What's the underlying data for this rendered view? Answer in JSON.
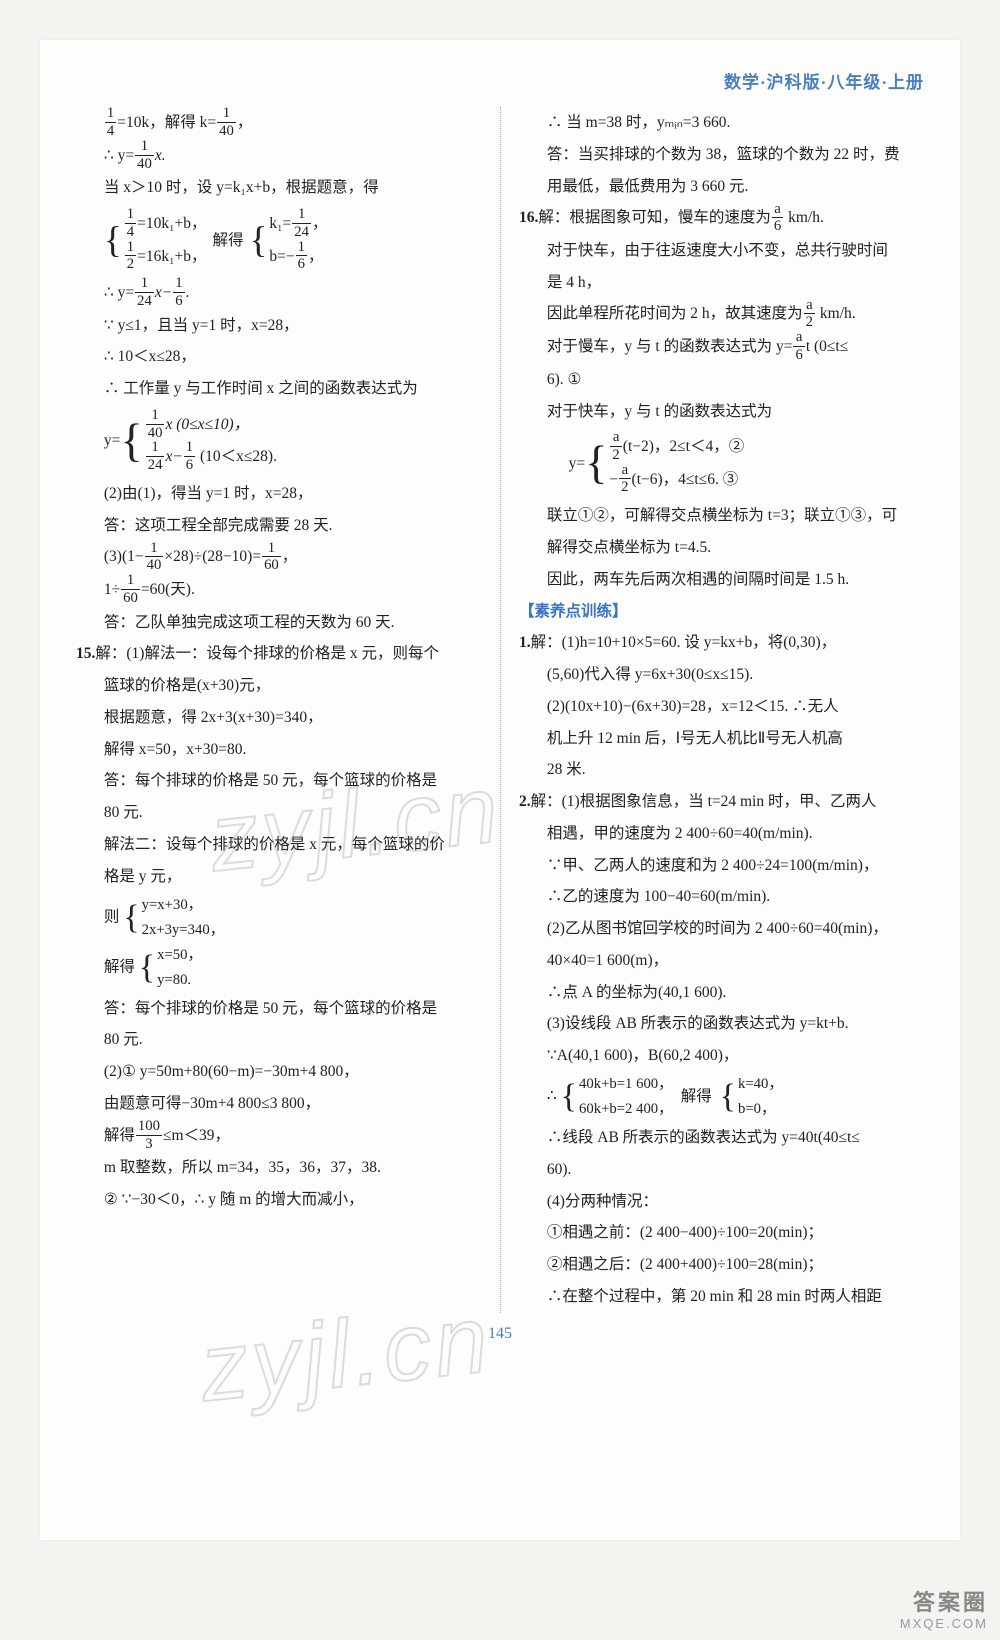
{
  "header": "数学·沪科版·八年级·上册",
  "page_number": "145",
  "watermark_text": "zyjl.cn",
  "corner": {
    "line1": "答案圈",
    "line2": "MXQE.COM"
  },
  "left": {
    "l1a": "1",
    "l1b": "4",
    "l1c": "=10k，解得 k=",
    "l1d": "1",
    "l1e": "40",
    "l1f": "，",
    "l2a": "∴ y=",
    "l2b": "1",
    "l2c": "40",
    "l2d": "x.",
    "l3": "当 x＞10 时，设 y=k₁x+b，根据题意，得",
    "sys1a_n": "1",
    "sys1a_d": "4",
    "sys1a_t": "=10k₁+b，",
    "sys1b_n": "1",
    "sys1b_d": "2",
    "sys1b_t": "=16k₁+b，",
    "sys1_mid": "解得",
    "sys1c_n": "1",
    "sys1c_d": "24",
    "sys1c_t": "k₁=",
    "sys1c_s": "，",
    "sys1d_n": "1",
    "sys1d_d": "6",
    "sys1d_t": "b=−",
    "sys1d_s": "，",
    "l4a": "∴ y=",
    "l4b": "1",
    "l4c": "24",
    "l4d": "x−",
    "l4e": "1",
    "l4f": "6",
    "l4g": ".",
    "l5": "∵ y≤1，且当 y=1 时，x=28，",
    "l6": "∴ 10＜x≤28，",
    "l7": "∴ 工作量 y 与工作时间 x 之间的函数表达式为",
    "pw_pre": "y=",
    "pw1_n": "1",
    "pw1_d": "40",
    "pw1_t": "x (0≤x≤10)，",
    "pw2_n": "1",
    "pw2_d": "24",
    "pw2_t": "x−",
    "pw2e_n": "1",
    "pw2e_d": "6",
    "pw2_s": " (10＜x≤28).",
    "l8": "(2)由(1)，得当 y=1 时，x=28，",
    "l9": "答：这项工程全部完成需要 28 天.",
    "l10a": "(3)(1−",
    "l10b": "1",
    "l10c": "40",
    "l10d": "×28)÷(28−10)=",
    "l10e": "1",
    "l10f": "60",
    "l10g": "，",
    "l11a": "1÷",
    "l11b": "1",
    "l11c": "60",
    "l11d": "=60(天).",
    "l12": "答：乙队单独完成这项工程的天数为 60 天.",
    "q15": "15.",
    "l13": "解：(1)解法一：设每个排球的价格是 x 元，则每个",
    "l14": "篮球的价格是(x+30)元，",
    "l15": "根据题意，得 2x+3(x+30)=340，",
    "l16": "解得 x=50，x+30=80.",
    "l17": "答：每个排球的价格是 50 元，每个篮球的价格是",
    "l18": "80 元.",
    "l19": "解法二：设每个排球的价格是 x 元，每个篮球的价",
    "l20": "格是 y 元，",
    "l21_pre": "则",
    "sys2a": "y=x+30，",
    "sys2b": "2x+3y=340，",
    "l22_pre": "解得",
    "sys3a": "x=50，",
    "sys3b": "y=80.",
    "l23a": "答：每个排球的价格是 50 元，每个篮球的价格是",
    "l23b": "80 元.",
    "l24": "(2)① y=50m+80(60−m)=−30m+4 800，",
    "l25": "由题意可得−30m+4 800≤3 800，",
    "l26a": "解得",
    "l26b_n": "100",
    "l26b_d": "3",
    "l26c": "≤m＜39，",
    "l27": "m 取整数，所以 m=34，35，36，37，38.",
    "l28": "② ∵−30＜0，∴ y 随 m 的增大而减小，"
  },
  "right": {
    "r1": "∴ 当 m=38 时，yₘᵢₙ=3 660.",
    "r2": "答：当买排球的个数为 38，篮球的个数为 22 时，费",
    "r3": "用最低，最低费用为 3 660 元.",
    "q16": "16.",
    "r4a": "解：根据图象可知，慢车的速度为",
    "r4b_n": "a",
    "r4b_d": "6",
    "r4c": " km/h.",
    "r5": "对于快车，由于往返速度大小不变，总共行驶时间",
    "r6": "是 4 h，",
    "r7a": "因此单程所花时间为 2 h，故其速度为",
    "r7b_n": "a",
    "r7b_d": "2",
    "r7c": " km/h.",
    "r8a": "对于慢车，y 与 t 的函数表达式为 y=",
    "r8b_n": "a",
    "r8b_d": "6",
    "r8c": "t (0≤t≤",
    "r8d": "6). ①",
    "r9": "对于快车，y 与 t 的函数表达式为",
    "pw3_pre": "y=",
    "pw3a_n": "a",
    "pw3a_d": "2",
    "pw3a_t": "(t−2)，2≤t＜4，②",
    "pw3b_n": "a",
    "pw3b_d": "2",
    "pw3b_t": "−",
    "pw3b_s": "(t−6)，4≤t≤6. ③",
    "r10": "联立①②，可解得交点横坐标为 t=3；联立①③，可",
    "r11": "解得交点横坐标为 t=4.5.",
    "r12": "因此，两车先后两次相遇的间隔时间是 1.5 h.",
    "section": "【素养点训练】",
    "q1": "1.",
    "r13": "解：(1)h=10+10×5=60. 设 y=kx+b，将(0,30)，",
    "r14": "(5,60)代入得 y=6x+30(0≤x≤15).",
    "r15": "(2)(10x+10)−(6x+30)=28，x=12＜15. ∴无人",
    "r16": "机上升 12 min 后，Ⅰ号无人机比Ⅱ号无人机高",
    "r17": "28 米.",
    "q2": "2.",
    "r18": "解：(1)根据图象信息，当 t=24 min 时，甲、乙两人",
    "r19": "相遇，甲的速度为 2 400÷60=40(m/min).",
    "r20": "∵甲、乙两人的速度和为 2 400÷24=100(m/min)，",
    "r21": "∴乙的速度为 100−40=60(m/min).",
    "r22": "(2)乙从图书馆回学校的时间为 2 400÷60=40(min)，",
    "r23": "40×40=1 600(m)，",
    "r24": "∴点 A 的坐标为(40,1 600).",
    "r25": "(3)设线段 AB 所表示的函数表达式为 y=kt+b.",
    "r26": "∵A(40,1 600)，B(60,2 400)，",
    "sys4_pre": "∴",
    "sys4a": "40k+b=1 600，",
    "sys4b": "60k+b=2 400，",
    "sys4_mid": "解得",
    "sys4c": "k=40，",
    "sys4d": "b=0，",
    "r27": "∴线段 AB 所表示的函数表达式为 y=40t(40≤t≤",
    "r28": "60).",
    "r29": "(4)分两种情况：",
    "r30": "①相遇之前：(2 400−400)÷100=20(min)；",
    "r31": "②相遇之后：(2 400+400)÷100=28(min)；",
    "r32": "∴在整个过程中，第 20 min 和 28 min 时两人相距"
  }
}
